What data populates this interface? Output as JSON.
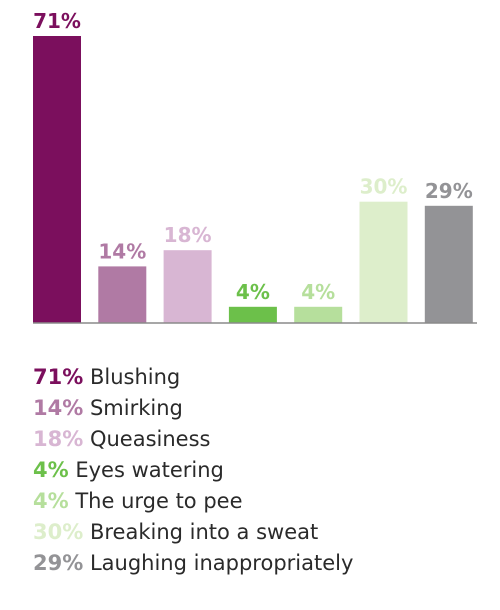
{
  "chart_data": {
    "type": "bar",
    "categories": [
      "Blushing",
      "Smirking",
      "Queasiness",
      "Eyes watering",
      "The urge to pee",
      "Breaking into a sweat",
      "Laughing inappropriately"
    ],
    "values": [
      71,
      14,
      18,
      4,
      4,
      30,
      29
    ],
    "value_labels": [
      "71%",
      "14%",
      "18%",
      "4%",
      "4%",
      "30%",
      "29%"
    ],
    "colors": [
      "#7b0f5d",
      "#b07aa4",
      "#d8b6d3",
      "#6cc04a",
      "#b6df9c",
      "#ddeecb",
      "#939396"
    ],
    "ylim": [
      0,
      71
    ],
    "legend_position": "bottom"
  },
  "legend": {
    "items": [
      {
        "value": "71%",
        "label": "Blushing"
      },
      {
        "value": "14%",
        "label": "Smirking"
      },
      {
        "value": "18%",
        "label": "Queasiness"
      },
      {
        "value": "4%",
        "label": "Eyes watering"
      },
      {
        "value": "4%",
        "label": "The urge to pee"
      },
      {
        "value": "30%",
        "label": "Breaking into a sweat"
      },
      {
        "value": "29%",
        "label": "Laughing inappropriately"
      }
    ]
  }
}
